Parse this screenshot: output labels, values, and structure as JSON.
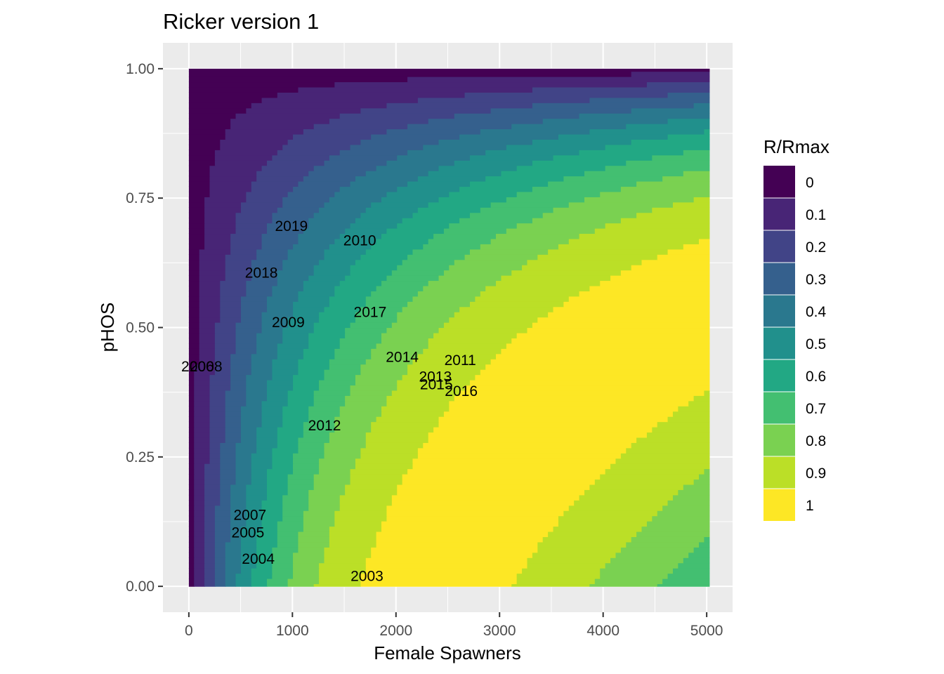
{
  "chart_data": {
    "type": "heatmap",
    "title": "Ricker version 1",
    "xlabel": "Female Spawners",
    "ylabel": "pHOS",
    "xlim": [
      -250,
      5250
    ],
    "ylim": [
      -0.05,
      1.05
    ],
    "x_ticks": [
      0,
      1000,
      2000,
      3000,
      4000,
      5000
    ],
    "x_tick_labels": [
      "0",
      "1000",
      "2000",
      "3000",
      "4000",
      "5000"
    ],
    "y_ticks": [
      0,
      0.25,
      0.5,
      0.75,
      1.0
    ],
    "y_tick_labels": [
      "0.00",
      "0.25",
      "0.50",
      "0.75",
      "1.00"
    ],
    "grid": true,
    "surface": {
      "x_range": [
        25,
        5000
      ],
      "y_range": [
        0,
        1
      ],
      "value": "R/Rmax",
      "peak_x": 2300,
      "peak_y": 0
    },
    "legend": {
      "title": "R/Rmax",
      "position": "right",
      "entries": [
        {
          "label": "0",
          "color": "#440154"
        },
        {
          "label": "0.1",
          "color": "#482576"
        },
        {
          "label": "0.2",
          "color": "#414487"
        },
        {
          "label": "0.3",
          "color": "#35608D"
        },
        {
          "label": "0.4",
          "color": "#2A788E"
        },
        {
          "label": "0.5",
          "color": "#21908C"
        },
        {
          "label": "0.6",
          "color": "#22A884"
        },
        {
          "label": "0.7",
          "color": "#43BF71"
        },
        {
          "label": "0.8",
          "color": "#7AD151"
        },
        {
          "label": "0.9",
          "color": "#BBDF27"
        },
        {
          "label": "1",
          "color": "#FDE725"
        }
      ]
    },
    "points": [
      {
        "label": "2003",
        "x": 1720,
        "y": 0.02
      },
      {
        "label": "2004",
        "x": 670,
        "y": 0.053
      },
      {
        "label": "2005",
        "x": 570,
        "y": 0.104
      },
      {
        "label": "2006",
        "x": 85,
        "y": 0.425
      },
      {
        "label": "2007",
        "x": 590,
        "y": 0.138
      },
      {
        "label": "2008",
        "x": 165,
        "y": 0.425
      },
      {
        "label": "2009",
        "x": 960,
        "y": 0.51
      },
      {
        "label": "2010",
        "x": 1650,
        "y": 0.668
      },
      {
        "label": "2011",
        "x": 2620,
        "y": 0.437
      },
      {
        "label": "2012",
        "x": 1310,
        "y": 0.311
      },
      {
        "label": "2013",
        "x": 2380,
        "y": 0.405
      },
      {
        "label": "2014",
        "x": 2060,
        "y": 0.443
      },
      {
        "label": "2015",
        "x": 2390,
        "y": 0.39
      },
      {
        "label": "2016",
        "x": 2630,
        "y": 0.377
      },
      {
        "label": "2017",
        "x": 1750,
        "y": 0.53
      },
      {
        "label": "2018",
        "x": 700,
        "y": 0.606
      },
      {
        "label": "2019",
        "x": 990,
        "y": 0.696
      }
    ]
  }
}
